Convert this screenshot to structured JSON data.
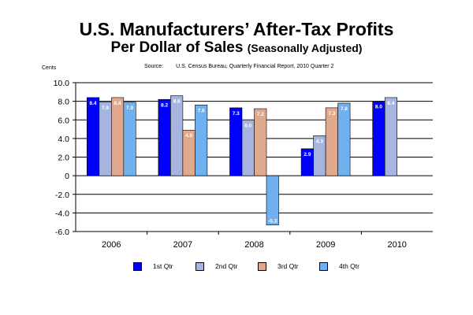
{
  "title": "U.S. Manufacturers’ After-Tax Profits",
  "subtitle_main": "Per Dollar of Sales",
  "subtitle_note": "(Seasonally Adjusted)",
  "source_label": "Source:",
  "source_text": "U.S. Census Bureau, Quarterly Financial Report, 2010 Quarter 2",
  "units_label": "Cents",
  "chart_data": {
    "type": "bar",
    "title": "U.S. Manufacturers’ After-Tax Profits Per Dollar of Sales (Seasonally Adjusted)",
    "ylabel": "Cents",
    "xlabel": "",
    "ylim": [
      -6.0,
      10.0
    ],
    "yticks": [
      "10.0",
      "8.0",
      "6.0",
      "4.0",
      "2.0",
      "0",
      "-2.0",
      "-4.0",
      "-6.0"
    ],
    "grid": true,
    "legend_position": "bottom",
    "categories": [
      "2006",
      "2007",
      "2008",
      "2009",
      "2010"
    ],
    "series": [
      {
        "name": "1st Qtr",
        "color": "#0000ff",
        "values": [
          8.4,
          8.2,
          7.3,
          2.9,
          8.0
        ],
        "labels": [
          "8.4",
          "8.2",
          "7.3",
          "2.9",
          "8.0"
        ]
      },
      {
        "name": "2nd Qtr",
        "color": "#a6b4e0",
        "values": [
          7.9,
          8.6,
          6.0,
          4.3,
          8.4
        ],
        "labels": [
          "7.9",
          "8.6",
          "6.0",
          "4.3",
          "8.4"
        ]
      },
      {
        "name": "3rd Qtr",
        "color": "#e0a98e",
        "values": [
          8.4,
          4.9,
          7.2,
          7.3,
          null
        ],
        "labels": [
          "8.4",
          "4.9",
          "7.2",
          "7.3",
          ""
        ]
      },
      {
        "name": "4th Qtr",
        "color": "#6fb1f0",
        "values": [
          7.9,
          7.6,
          -5.3,
          7.8,
          null
        ],
        "labels": [
          "7.9",
          "7.6",
          "-5.3",
          "7.8",
          ""
        ]
      }
    ]
  }
}
